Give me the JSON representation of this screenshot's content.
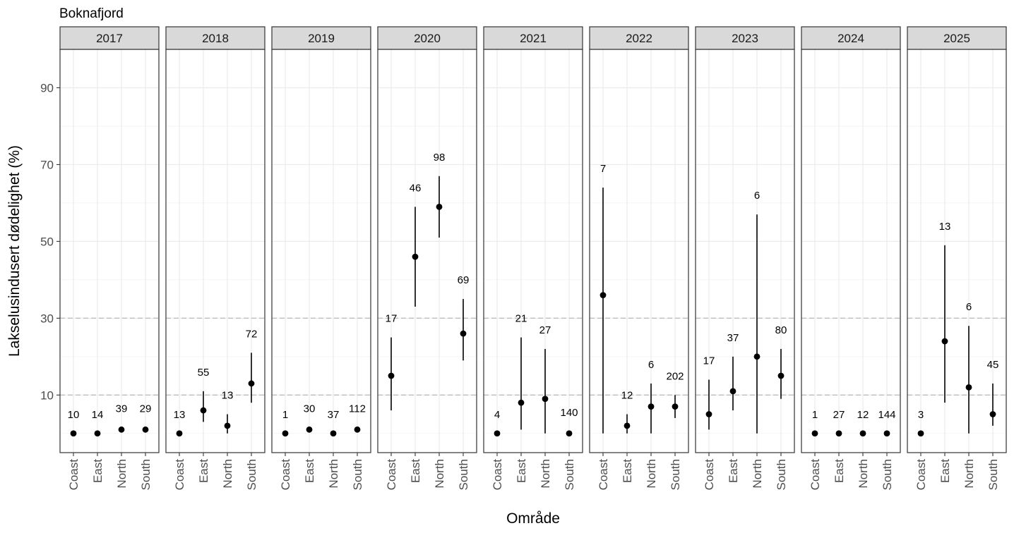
{
  "chart_data": {
    "type": "scatter",
    "title": "Boknafjord",
    "xlabel": "Område",
    "ylabel": "Lakselusindusert dødelighet (%)",
    "ylim": [
      -5,
      100
    ],
    "yticks": [
      10,
      30,
      50,
      70,
      90
    ],
    "reference_lines": [
      10,
      30
    ],
    "categories": [
      "Coast",
      "East",
      "North",
      "South"
    ],
    "grid": true,
    "panels": [
      {
        "year": "2017",
        "points": [
          {
            "x": "Coast",
            "y": 0,
            "lo": 0,
            "hi": 0,
            "n": "10"
          },
          {
            "x": "East",
            "y": 0,
            "lo": 0,
            "hi": 0,
            "n": "14"
          },
          {
            "x": "North",
            "y": 1,
            "lo": 0.5,
            "hi": 1.5,
            "n": "39"
          },
          {
            "x": "South",
            "y": 1,
            "lo": 0.5,
            "hi": 1.5,
            "n": "29"
          }
        ]
      },
      {
        "year": "2018",
        "points": [
          {
            "x": "Coast",
            "y": 0,
            "lo": 0,
            "hi": 0,
            "n": "13"
          },
          {
            "x": "East",
            "y": 6,
            "lo": 3,
            "hi": 11,
            "n": "55"
          },
          {
            "x": "North",
            "y": 2,
            "lo": 0,
            "hi": 5,
            "n": "13"
          },
          {
            "x": "South",
            "y": 13,
            "lo": 8,
            "hi": 21,
            "n": "72"
          }
        ]
      },
      {
        "year": "2019",
        "points": [
          {
            "x": "Coast",
            "y": 0,
            "lo": 0,
            "hi": 0,
            "n": "1"
          },
          {
            "x": "East",
            "y": 1,
            "lo": 0.5,
            "hi": 1.5,
            "n": "30"
          },
          {
            "x": "North",
            "y": 0,
            "lo": 0,
            "hi": 0,
            "n": "37"
          },
          {
            "x": "South",
            "y": 1,
            "lo": 0.5,
            "hi": 1.5,
            "n": "112"
          }
        ]
      },
      {
        "year": "2020",
        "points": [
          {
            "x": "Coast",
            "y": 15,
            "lo": 6,
            "hi": 25,
            "n": "17"
          },
          {
            "x": "East",
            "y": 46,
            "lo": 33,
            "hi": 59,
            "n": "46"
          },
          {
            "x": "North",
            "y": 59,
            "lo": 51,
            "hi": 67,
            "n": "98"
          },
          {
            "x": "South",
            "y": 26,
            "lo": 19,
            "hi": 35,
            "n": "69"
          }
        ]
      },
      {
        "year": "2021",
        "points": [
          {
            "x": "Coast",
            "y": 0,
            "lo": 0,
            "hi": 0,
            "n": "4"
          },
          {
            "x": "East",
            "y": 8,
            "lo": 1,
            "hi": 25,
            "n": "21"
          },
          {
            "x": "North",
            "y": 9,
            "lo": 0,
            "hi": 22,
            "n": "27"
          },
          {
            "x": "South",
            "y": 0,
            "lo": 0,
            "hi": 0.5,
            "n": "140"
          }
        ]
      },
      {
        "year": "2022",
        "points": [
          {
            "x": "Coast",
            "y": 36,
            "lo": 0,
            "hi": 64,
            "n": "7"
          },
          {
            "x": "East",
            "y": 2,
            "lo": 0,
            "hi": 5,
            "n": "12"
          },
          {
            "x": "North",
            "y": 7,
            "lo": 0,
            "hi": 13,
            "n": "6"
          },
          {
            "x": "South",
            "y": 7,
            "lo": 4,
            "hi": 10,
            "n": "202"
          }
        ]
      },
      {
        "year": "2023",
        "points": [
          {
            "x": "Coast",
            "y": 5,
            "lo": 1,
            "hi": 14,
            "n": "17"
          },
          {
            "x": "East",
            "y": 11,
            "lo": 6,
            "hi": 20,
            "n": "37"
          },
          {
            "x": "North",
            "y": 20,
            "lo": 0,
            "hi": 57,
            "n": "6"
          },
          {
            "x": "South",
            "y": 15,
            "lo": 9,
            "hi": 22,
            "n": "80"
          }
        ]
      },
      {
        "year": "2024",
        "points": [
          {
            "x": "Coast",
            "y": 0,
            "lo": 0,
            "hi": 0,
            "n": "1"
          },
          {
            "x": "East",
            "y": 0,
            "lo": 0,
            "hi": 0,
            "n": "27"
          },
          {
            "x": "North",
            "y": 0,
            "lo": 0,
            "hi": 0,
            "n": "12"
          },
          {
            "x": "South",
            "y": 0,
            "lo": 0,
            "hi": 0,
            "n": "144"
          }
        ]
      },
      {
        "year": "2025",
        "points": [
          {
            "x": "Coast",
            "y": 0,
            "lo": 0,
            "hi": 0,
            "n": "3"
          },
          {
            "x": "East",
            "y": 24,
            "lo": 8,
            "hi": 49,
            "n": "13"
          },
          {
            "x": "North",
            "y": 12,
            "lo": 0,
            "hi": 28,
            "n": "6"
          },
          {
            "x": "South",
            "y": 5,
            "lo": 2,
            "hi": 13,
            "n": "45"
          }
        ]
      }
    ]
  }
}
